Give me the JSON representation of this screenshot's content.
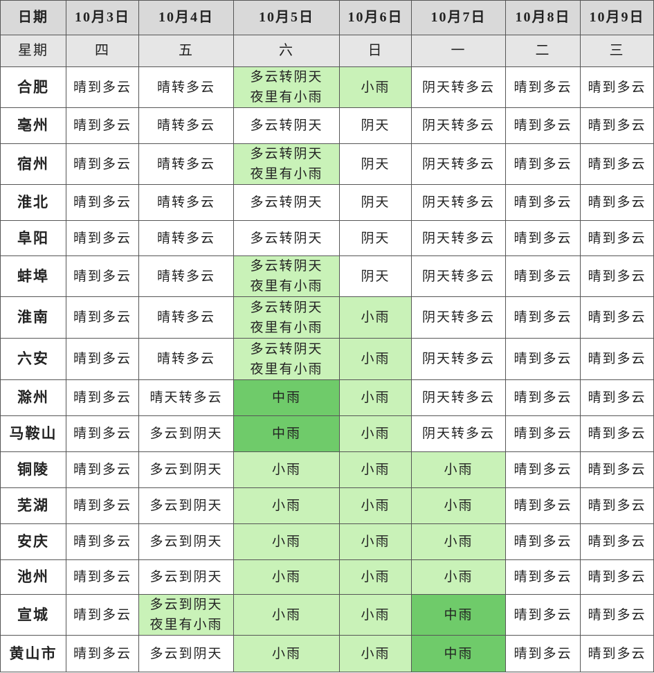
{
  "table": {
    "header": [
      "日期",
      "10月3日",
      "10月4日",
      "10月5日",
      "10月6日",
      "10月7日",
      "10月8日",
      "10月9日"
    ],
    "weekdays": [
      "星期",
      "四",
      "五",
      "六",
      "日",
      "一",
      "二",
      "三"
    ],
    "rows": [
      [
        "合肥",
        "晴到多云",
        "晴转多云",
        "多云转阴天\n夜里有小雨",
        "小雨",
        "阴天转多云",
        "晴到多云",
        "晴到多云"
      ],
      [
        "亳州",
        "晴到多云",
        "晴转多云",
        "多云转阴天",
        "阴天",
        "阴天转多云",
        "晴到多云",
        "晴到多云"
      ],
      [
        "宿州",
        "晴到多云",
        "晴转多云",
        "多云转阴天\n夜里有小雨",
        "阴天",
        "阴天转多云",
        "晴到多云",
        "晴到多云"
      ],
      [
        "淮北",
        "晴到多云",
        "晴转多云",
        "多云转阴天",
        "阴天",
        "阴天转多云",
        "晴到多云",
        "晴到多云"
      ],
      [
        "阜阳",
        "晴到多云",
        "晴转多云",
        "多云转阴天",
        "阴天",
        "阴天转多云",
        "晴到多云",
        "晴到多云"
      ],
      [
        "蚌埠",
        "晴到多云",
        "晴转多云",
        "多云转阴天\n夜里有小雨",
        "阴天",
        "阴天转多云",
        "晴到多云",
        "晴到多云"
      ],
      [
        "淮南",
        "晴到多云",
        "晴转多云",
        "多云转阴天\n夜里有小雨",
        "小雨",
        "阴天转多云",
        "晴到多云",
        "晴到多云"
      ],
      [
        "六安",
        "晴到多云",
        "晴转多云",
        "多云转阴天\n夜里有小雨",
        "小雨",
        "阴天转多云",
        "晴到多云",
        "晴到多云"
      ],
      [
        "滁州",
        "晴到多云",
        "晴天转多云",
        "中雨",
        "小雨",
        "阴天转多云",
        "晴到多云",
        "晴到多云"
      ],
      [
        "马鞍山",
        "晴到多云",
        "多云到阴天",
        "中雨",
        "小雨",
        "阴天转多云",
        "晴到多云",
        "晴到多云"
      ],
      [
        "铜陵",
        "晴到多云",
        "多云到阴天",
        "小雨",
        "小雨",
        "小雨",
        "晴到多云",
        "晴到多云"
      ],
      [
        "芜湖",
        "晴到多云",
        "多云到阴天",
        "小雨",
        "小雨",
        "小雨",
        "晴到多云",
        "晴到多云"
      ],
      [
        "安庆",
        "晴到多云",
        "多云到阴天",
        "小雨",
        "小雨",
        "小雨",
        "晴到多云",
        "晴到多云"
      ],
      [
        "池州",
        "晴到多云",
        "多云到阴天",
        "小雨",
        "小雨",
        "小雨",
        "晴到多云",
        "晴到多云"
      ],
      [
        "宣城",
        "晴到多云",
        "多云到阴天\n夜里有小雨",
        "小雨",
        "小雨",
        "中雨",
        "晴到多云",
        "晴到多云"
      ],
      [
        "黄山市",
        "晴到多云",
        "多云到阴天",
        "小雨",
        "小雨",
        "中雨",
        "晴到多云",
        "晴到多云"
      ]
    ]
  }
}
